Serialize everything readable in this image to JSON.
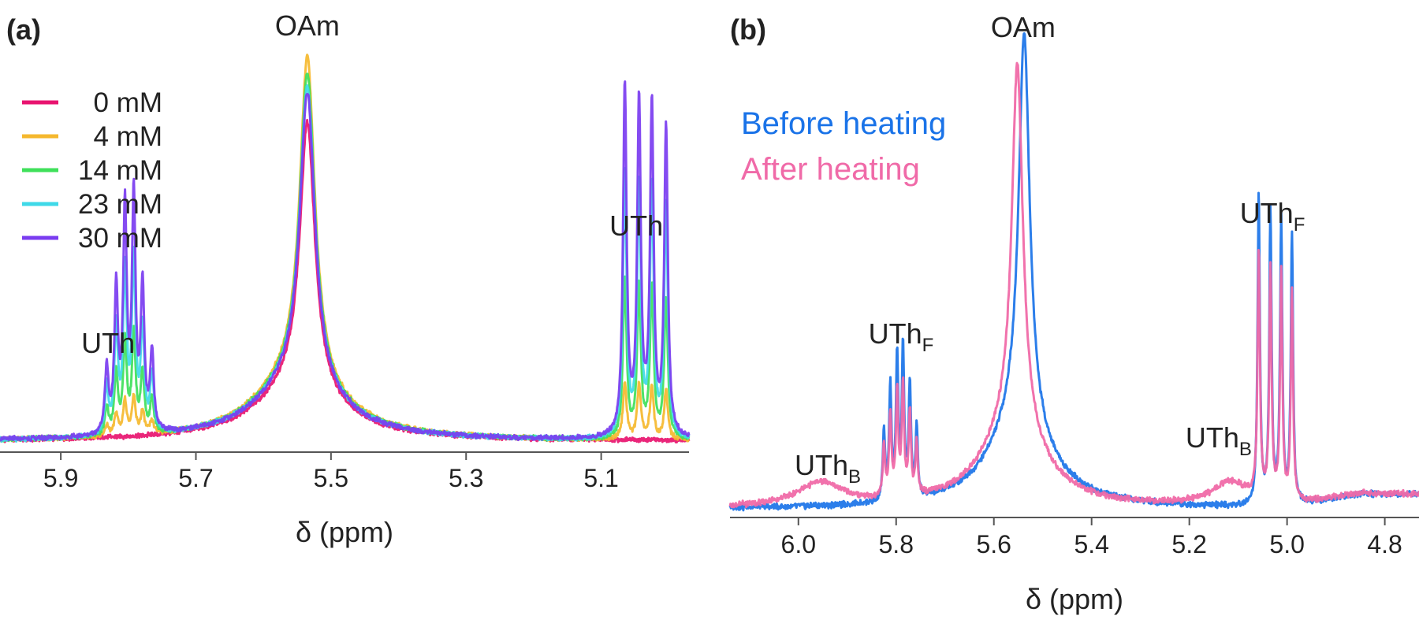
{
  "figure": {
    "panel_a_label": "(a)",
    "panel_b_label": "(b)"
  },
  "chart_data": [
    {
      "type": "line",
      "panel": "(a)",
      "xlabel": "δ (ppm)",
      "ylabel": "",
      "x_reversed": true,
      "xlim": [
        5.99,
        4.97
      ],
      "xticks": [
        5.9,
        5.7,
        5.5,
        5.3,
        5.1
      ],
      "xtick_labels": [
        "5.9",
        "5.7",
        "5.5",
        "5.3",
        "5.1"
      ],
      "legend": {
        "placement": "top-left",
        "entries": [
          "0 mM",
          "4 mM",
          "14 mM",
          "23 mM",
          "30 mM"
        ]
      },
      "annotations": [
        {
          "text": "OAm",
          "sub": "",
          "x": 5.535
        },
        {
          "text": "UTh",
          "sub": "",
          "x": 5.83
        },
        {
          "text": "UTh",
          "sub": "",
          "x": 5.048
        }
      ],
      "series": [
        {
          "name": "0 mM",
          "color": "#e8136f",
          "peaks": {
            "oam": 0.97,
            "uth_left": 0.0,
            "uth_right": 0.0
          }
        },
        {
          "name": "4 mM",
          "color": "#f5b82e",
          "peaks": {
            "oam": 1.17,
            "uth_left": 0.12,
            "uth_right": 0.17
          }
        },
        {
          "name": "14 mM",
          "color": "#3fe05a",
          "peaks": {
            "oam": 1.12,
            "uth_left": 0.33,
            "uth_right": 0.48
          }
        },
        {
          "name": "23 mM",
          "color": "#3fd9e8",
          "peaks": {
            "oam": 1.08,
            "uth_left": 0.57,
            "uth_right": 0.8
          }
        },
        {
          "name": "30 mM",
          "color": "#7a3cf0",
          "peaks": {
            "oam": 1.06,
            "uth_left": 0.78,
            "uth_right": 1.06
          }
        }
      ]
    },
    {
      "type": "line",
      "panel": "(b)",
      "xlabel": "δ (ppm)",
      "ylabel": "",
      "x_reversed": true,
      "xlim": [
        6.14,
        4.73
      ],
      "xticks": [
        6.0,
        5.8,
        5.6,
        5.4,
        5.2,
        5.0,
        4.8
      ],
      "xtick_labels": [
        "6.0",
        "5.8",
        "5.6",
        "5.4",
        "5.2",
        "5.0",
        "4.8"
      ],
      "legend": {
        "placement": "top-left",
        "entries": [
          "Before heating",
          "After heating"
        ]
      },
      "annotations": [
        {
          "text": "OAm",
          "sub": "",
          "x": 5.54
        },
        {
          "text": "UTh",
          "sub": "F",
          "x": 5.79
        },
        {
          "text": "UTh",
          "sub": "B",
          "x": 5.94
        },
        {
          "text": "UTh",
          "sub": "F",
          "x": 5.03
        },
        {
          "text": "UTh",
          "sub": "B",
          "x": 5.14
        }
      ],
      "series": [
        {
          "name": "Before heating",
          "color": "#1a73e8",
          "peaks": {
            "oam": 1.2,
            "uth_f_left": 0.38,
            "uth_f_right": 0.78,
            "uth_b": 0.0
          }
        },
        {
          "name": "After heating",
          "color": "#f06aa8",
          "peaks": {
            "oam": 1.12,
            "uth_f_left": 0.28,
            "uth_f_right": 0.62,
            "uth_b": 0.06
          }
        }
      ]
    }
  ]
}
